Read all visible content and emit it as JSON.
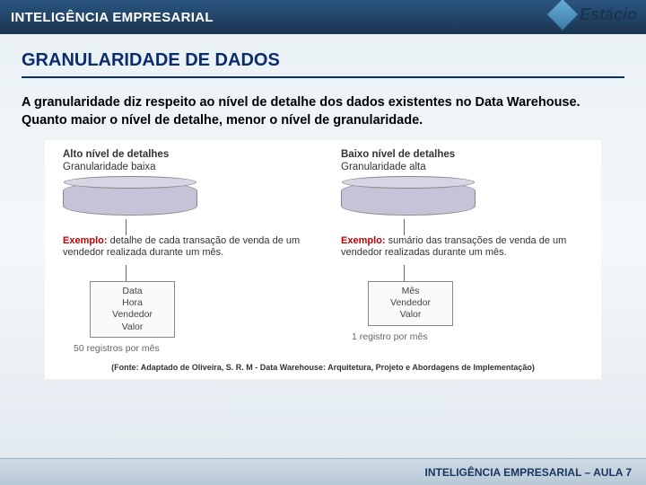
{
  "header": {
    "title": "INTELIGÊNCIA EMPRESARIAL",
    "logo_text": "Estácio"
  },
  "section": {
    "title": "GRANULARIDADE DE DADOS",
    "intro": "A granularidade diz respeito ao nível de detalhe dos dados existentes no Data Warehouse. Quanto maior o nível de detalhe, menor o nível de granularidade."
  },
  "diagram": {
    "left": {
      "head_line1": "Alto nível de detalhes",
      "head_line2": "Granularidade baixa",
      "example_label": "Exemplo:",
      "example_text": " detalhe de cada transação de venda de um vendedor realizada durante um mês.",
      "box_lines": [
        "Data",
        "Hora",
        "Vendedor",
        "Valor"
      ],
      "records": "50 registros por mês"
    },
    "right": {
      "head_line1": "Baixo nível de detalhes",
      "head_line2": "Granularidade alta",
      "example_label": "Exemplo:",
      "example_text": " sumário das transações de venda de um vendedor realizadas durante um mês.",
      "box_lines": [
        "Mês",
        "Vendedor",
        "Valor"
      ],
      "records": "1 registro por mês"
    },
    "cite": "(Fonte: Adaptado de Oliveira, S. R. M - Data Warehouse: Arquitetura, Projeto e Abordagens de Implementação)"
  },
  "footer": {
    "text": "INTELIGÊNCIA EMPRESARIAL – AULA 7"
  },
  "styling": {
    "header_bg_top": "#2a5580",
    "header_bg_bottom": "#1a3550",
    "title_color": "#0a2d6e",
    "example_label_color": "#c00000",
    "cylinder_fill": "#c8c2d8",
    "footer_text_color": "#1a3560"
  }
}
